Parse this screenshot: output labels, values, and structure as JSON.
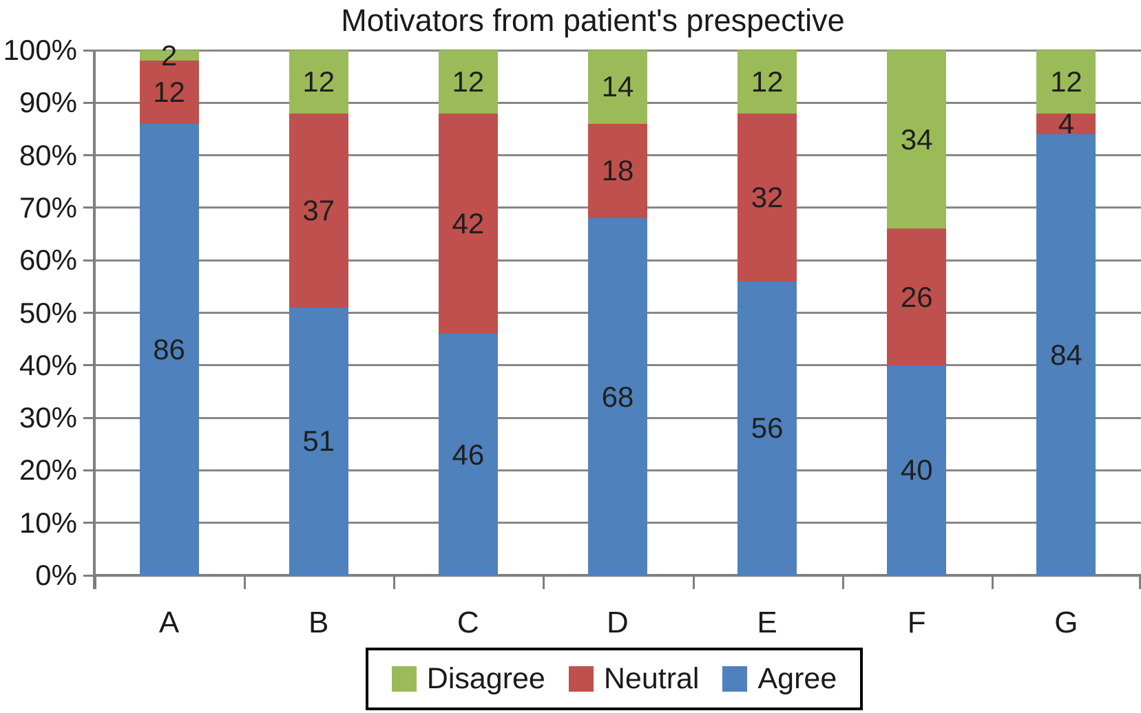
{
  "chart_data": {
    "type": "bar",
    "subtype": "stacked-percentage",
    "title": "Motivators from patient's prespective",
    "categories": [
      "A",
      "B",
      "C",
      "D",
      "E",
      "F",
      "G"
    ],
    "series": [
      {
        "name": "Disagree",
        "color": "#9BBB59",
        "values": [
          2,
          12,
          12,
          14,
          12,
          34,
          12
        ]
      },
      {
        "name": "Neutral",
        "color": "#C0504D",
        "values": [
          12,
          37,
          42,
          18,
          32,
          26,
          4
        ]
      },
      {
        "name": "Agree",
        "color": "#4F81BD",
        "values": [
          86,
          51,
          46,
          68,
          56,
          40,
          84
        ]
      }
    ],
    "stack_order_bottom_to_top": [
      "Agree",
      "Neutral",
      "Disagree"
    ],
    "y_axis": {
      "min": 0,
      "max": 100,
      "step": 10,
      "tick_labels": [
        "0%",
        "10%",
        "20%",
        "30%",
        "40%",
        "50%",
        "60%",
        "70%",
        "80%",
        "90%",
        "100%"
      ]
    },
    "xlabel": "",
    "ylabel": "",
    "grid": true,
    "grid_color": "#878787",
    "data_labels_shown": true,
    "legend": {
      "position": "bottom",
      "entries": [
        {
          "label": "Disagree",
          "color": "#9BBB59"
        },
        {
          "label": "Neutral",
          "color": "#C0504D"
        },
        {
          "label": "Agree",
          "color": "#4F81BD"
        }
      ]
    }
  }
}
